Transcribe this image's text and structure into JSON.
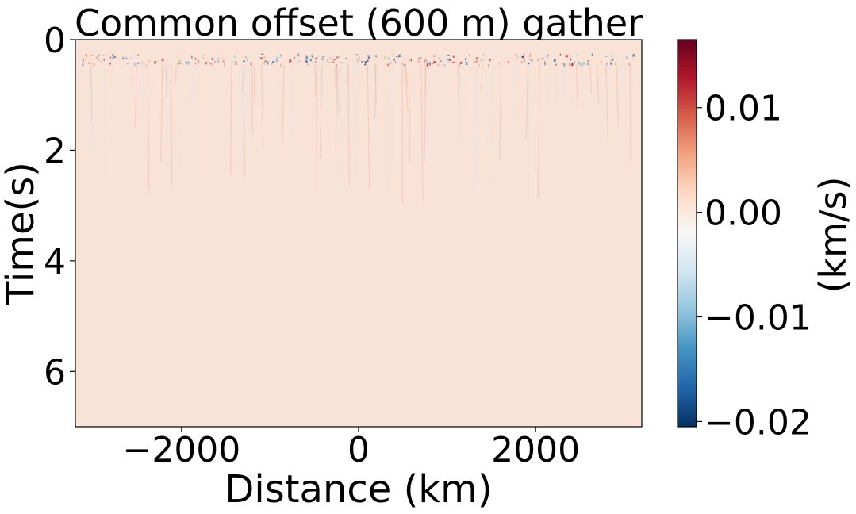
{
  "chart_data": {
    "type": "heatmap",
    "title": "Common offset (600 m) gather",
    "xlabel": "Distance (km)",
    "ylabel": "Time(s)",
    "xlim": [
      -3200,
      3200
    ],
    "ylim": [
      7,
      0
    ],
    "x_ticks": [
      {
        "value": -2000,
        "label": "−2000"
      },
      {
        "value": 0,
        "label": "0"
      },
      {
        "value": 2000,
        "label": "2000"
      }
    ],
    "y_ticks": [
      {
        "value": 0,
        "label": "0"
      },
      {
        "value": 2,
        "label": "2"
      },
      {
        "value": 4,
        "label": "4"
      },
      {
        "value": 6,
        "label": "6"
      }
    ],
    "colorbar": {
      "label": "(km/s)",
      "range": [
        -0.0205,
        0.0165
      ],
      "colormap": "RdBu_r",
      "ticks": [
        {
          "value": 0.01,
          "label": "0.01"
        },
        {
          "value": 0.0,
          "label": "0.00"
        },
        {
          "value": -0.01,
          "label": "−0.01"
        },
        {
          "value": -0.02,
          "label": "−0.02"
        }
      ],
      "stops": [
        "#053061",
        "#2166ac",
        "#4393c3",
        "#92c5de",
        "#d1e5f0",
        "#f7f7f7",
        "#fddbc7",
        "#f4a582",
        "#d6604d",
        "#b2182b",
        "#67001f"
      ]
    },
    "background_value": 0.0012,
    "background_color": "#f9e3d7",
    "reflection_band_time_s": [
      0.25,
      0.45
    ]
  }
}
